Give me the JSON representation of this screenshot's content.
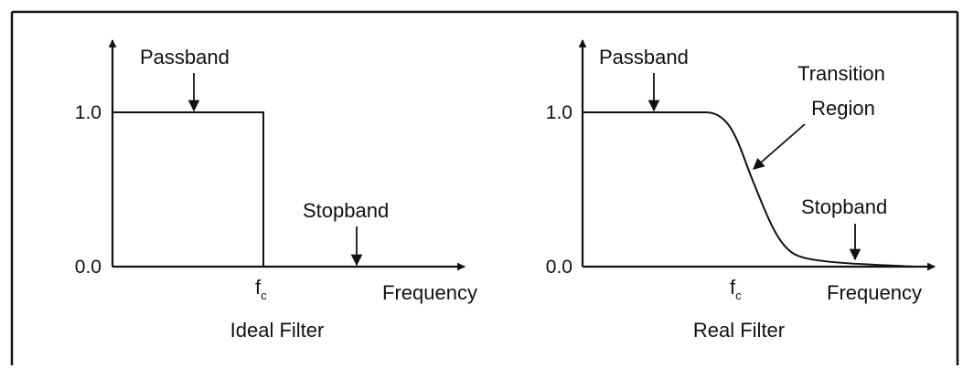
{
  "colors": {
    "line": "#111111",
    "frame": "#111111",
    "background": "#ffffff"
  },
  "panels": [
    {
      "id": "ideal",
      "caption": "Ideal Filter",
      "y_ticks": [
        "1.0",
        "0.0"
      ],
      "cutoff": {
        "main": "f",
        "sub": "c"
      },
      "x_axis_label": "Frequency",
      "annotations": {
        "passband": "Passband",
        "stopband": "Stopband"
      }
    },
    {
      "id": "real",
      "caption": "Real Filter",
      "y_ticks": [
        "1.0",
        "0.0"
      ],
      "cutoff": {
        "main": "f",
        "sub": "c"
      },
      "x_axis_label": "Frequency",
      "annotations": {
        "passband": "Passband",
        "stopband": "Stopband",
        "transition_line1": "Transition",
        "transition_line2": "Region"
      }
    }
  ]
}
